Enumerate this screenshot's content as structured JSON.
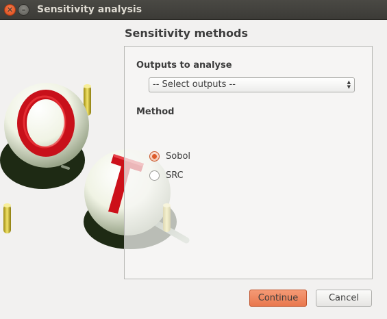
{
  "window": {
    "title": "Sensitivity analysis",
    "close_icon": "close-icon",
    "minimize_icon": "minimize-icon"
  },
  "page": {
    "title": "Sensitivity methods"
  },
  "outputs": {
    "label": "Outputs to analyse",
    "select_value": "-- Select outputs --"
  },
  "method": {
    "label": "Method",
    "options": [
      {
        "label": "Sobol",
        "checked": true
      },
      {
        "label": "SRC",
        "checked": false
      }
    ]
  },
  "buttons": {
    "continue": "Continue",
    "cancel": "Cancel"
  },
  "colors": {
    "accent": "#e9784e",
    "titlebar": "#3c3b37",
    "logo_letter": "#d0131c"
  }
}
